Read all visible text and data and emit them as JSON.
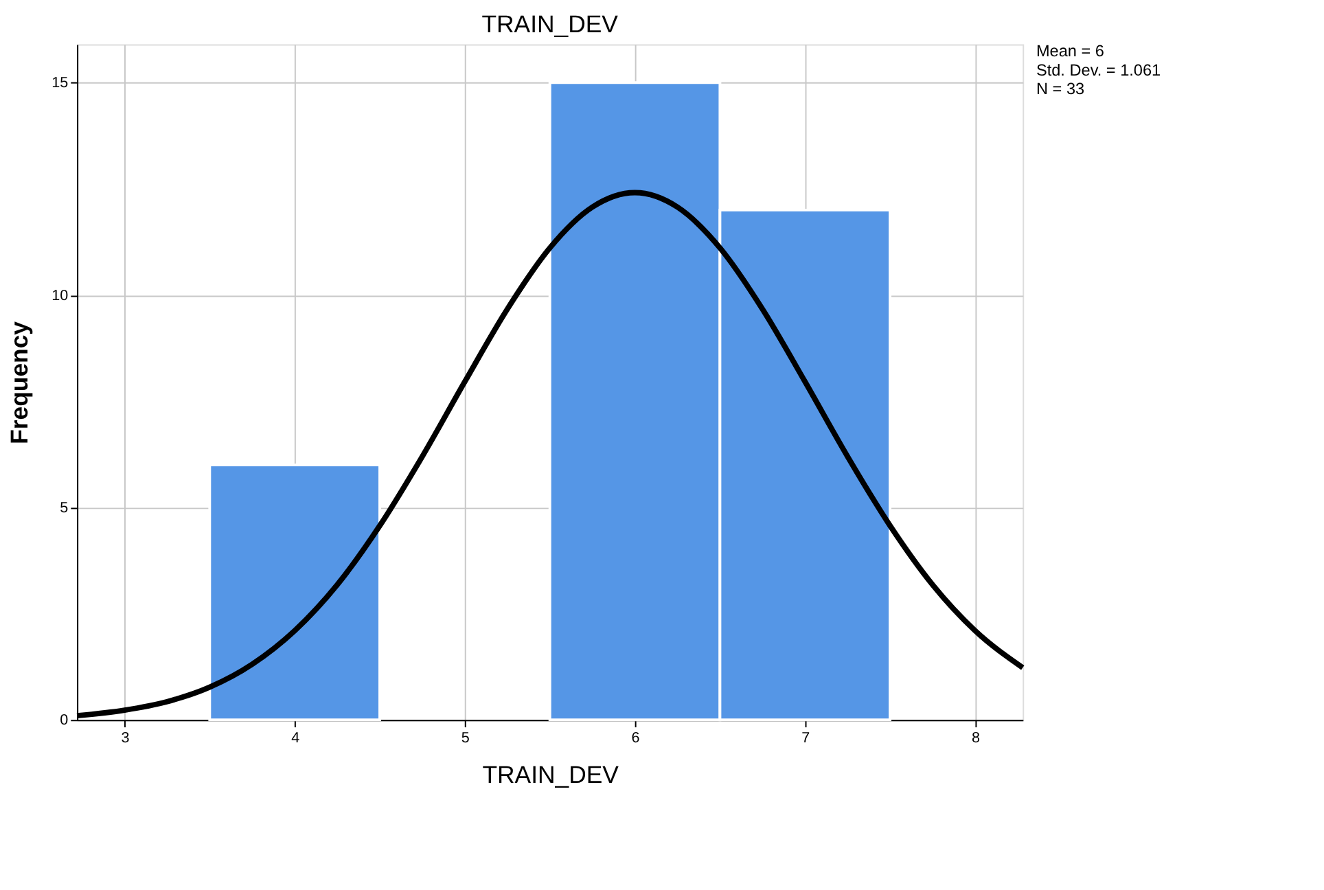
{
  "chart_data": {
    "type": "histogram",
    "title": "TRAIN_DEV",
    "xlabel": "TRAIN_DEV",
    "ylabel": "Frequency",
    "series": [
      {
        "bins": [
          3.5,
          4.5,
          5.5,
          6.5,
          7.5
        ],
        "values": [
          6,
          0,
          15,
          12
        ],
        "color": "#5596e6"
      },
      {
        "type": "line",
        "color": "#000000",
        "x": [
          2.72,
          3,
          3.25,
          3.5,
          3.75,
          4,
          4.25,
          4.5,
          4.75,
          5,
          5.25,
          5.5,
          5.75,
          6,
          6.25,
          6.5,
          6.75,
          7,
          7.25,
          7.5,
          7.75,
          8,
          8.28
        ],
        "values": [
          0.1,
          0.23,
          0.43,
          0.77,
          1.31,
          2.1,
          3.18,
          4.57,
          6.2,
          7.96,
          9.67,
          11.11,
          12.07,
          12.41,
          12.07,
          11.11,
          9.67,
          7.96,
          6.2,
          4.57,
          3.18,
          2.1,
          1.23
        ]
      }
    ],
    "xlim": [
      2.72,
      8.28
    ],
    "xticks": [
      3,
      4,
      5,
      6,
      7,
      8
    ],
    "ylim": [
      0,
      15.9
    ],
    "yticks": [
      0,
      5,
      10,
      15
    ],
    "grid": true,
    "annotations": [
      "Mean = 6",
      "Std. Dev. = 1.061",
      "N = 33"
    ]
  }
}
